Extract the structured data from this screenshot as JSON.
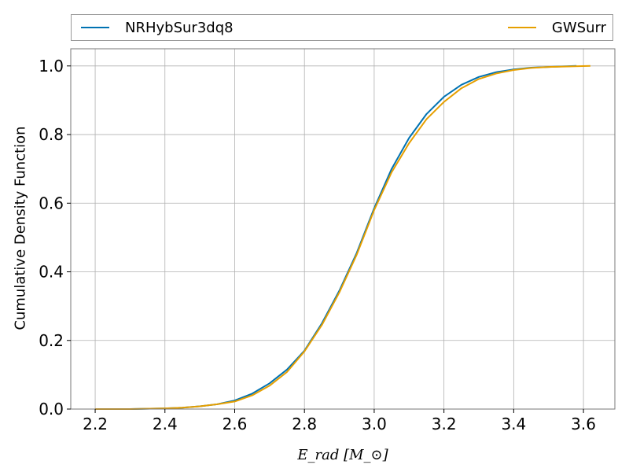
{
  "chart_data": {
    "type": "line",
    "xlabel": "E_rad [M_⊙]",
    "ylabel": "Cumulative Density Function",
    "xlim": [
      2.13,
      3.69
    ],
    "ylim": [
      0,
      1.05
    ],
    "xticks": [
      2.2,
      2.4,
      2.6,
      2.8,
      3.0,
      3.2,
      3.4,
      3.6
    ],
    "xtick_labels": [
      "2.2",
      "2.4",
      "2.6",
      "2.8",
      "3.0",
      "3.2",
      "3.4",
      "3.6"
    ],
    "yticks": [
      0.0,
      0.2,
      0.4,
      0.6,
      0.8,
      1.0
    ],
    "ytick_labels": [
      "0.0",
      "0.2",
      "0.4",
      "0.6",
      "0.8",
      "1.0"
    ],
    "grid": true,
    "legend_position": "top, above plot, spanning full width",
    "series": [
      {
        "name": "NRHybSur3dq8",
        "color": "#0072B2",
        "x": [
          2.2,
          2.3,
          2.4,
          2.45,
          2.5,
          2.55,
          2.6,
          2.65,
          2.7,
          2.75,
          2.8,
          2.85,
          2.9,
          2.95,
          3.0,
          3.05,
          3.1,
          3.15,
          3.2,
          3.25,
          3.3,
          3.35,
          3.4,
          3.45,
          3.5,
          3.58
        ],
        "y": [
          0.0,
          0.0,
          0.002,
          0.004,
          0.008,
          0.014,
          0.025,
          0.045,
          0.075,
          0.115,
          0.17,
          0.25,
          0.345,
          0.455,
          0.585,
          0.7,
          0.79,
          0.86,
          0.91,
          0.945,
          0.968,
          0.982,
          0.99,
          0.995,
          0.997,
          1.0
        ]
      },
      {
        "name": "GWSurr",
        "color": "#E69F00",
        "x": [
          2.2,
          2.3,
          2.4,
          2.45,
          2.5,
          2.55,
          2.6,
          2.65,
          2.7,
          2.75,
          2.8,
          2.85,
          2.9,
          2.95,
          3.0,
          3.05,
          3.1,
          3.15,
          3.2,
          3.25,
          3.3,
          3.35,
          3.4,
          3.45,
          3.5,
          3.62
        ],
        "y": [
          0.0,
          0.0,
          0.002,
          0.004,
          0.008,
          0.014,
          0.022,
          0.04,
          0.068,
          0.108,
          0.168,
          0.245,
          0.34,
          0.45,
          0.58,
          0.69,
          0.775,
          0.845,
          0.895,
          0.935,
          0.962,
          0.978,
          0.988,
          0.994,
          0.997,
          1.0
        ]
      }
    ]
  }
}
